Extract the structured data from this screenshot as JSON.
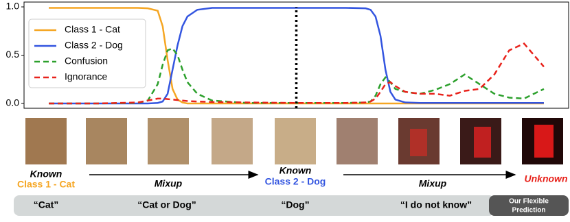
{
  "chart_data": {
    "type": "line",
    "x": [
      0,
      10,
      18,
      20,
      22,
      23,
      24,
      25,
      26,
      27,
      28,
      30,
      33,
      40,
      50,
      60,
      64,
      65,
      66,
      67,
      68,
      69,
      70,
      72,
      75,
      78,
      81,
      84,
      87,
      90,
      93,
      96,
      100
    ],
    "series": [
      {
        "name": "Class 1 - Cat",
        "color": "#f5a623",
        "dash": "solid",
        "values": [
          0.99,
          0.99,
          0.99,
          0.985,
          0.96,
          0.8,
          0.45,
          0.15,
          0.04,
          0.01,
          0,
          0,
          0,
          0,
          0,
          0,
          0,
          0,
          0,
          0,
          0,
          0,
          0,
          0,
          0,
          0,
          0,
          0,
          0,
          0,
          0,
          0,
          0
        ]
      },
      {
        "name": "Class 2 - Dog",
        "color": "#3355e0",
        "dash": "solid",
        "values": [
          0,
          0,
          0,
          0,
          0.005,
          0.02,
          0.1,
          0.35,
          0.6,
          0.8,
          0.9,
          0.97,
          0.99,
          0.99,
          0.99,
          0.99,
          0.985,
          0.97,
          0.9,
          0.7,
          0.35,
          0.12,
          0.04,
          0.01,
          0.005,
          0.005,
          0.005,
          0.005,
          0.005,
          0.005,
          0.005,
          0.005,
          0.005
        ]
      },
      {
        "name": "Confusion",
        "color": "#2ca02c",
        "dash": "dashed",
        "values": [
          0,
          0,
          0.005,
          0.03,
          0.2,
          0.4,
          0.55,
          0.57,
          0.5,
          0.35,
          0.22,
          0.1,
          0.03,
          0.005,
          0.005,
          0.005,
          0.01,
          0.02,
          0.08,
          0.2,
          0.27,
          0.22,
          0.15,
          0.12,
          0.1,
          0.14,
          0.2,
          0.3,
          0.2,
          0.1,
          0.06,
          0.05,
          0.15
        ]
      },
      {
        "name": "Ignorance",
        "color": "#e8221b",
        "dash": "dashed",
        "values": [
          0,
          0,
          0.01,
          0.03,
          0.05,
          0.05,
          0.045,
          0.04,
          0.035,
          0.03,
          0.025,
          0.02,
          0.015,
          0.01,
          0.005,
          0.005,
          0.01,
          0.02,
          0.05,
          0.12,
          0.2,
          0.22,
          0.18,
          0.12,
          0.1,
          0.1,
          0.08,
          0.13,
          0.15,
          0.3,
          0.55,
          0.62,
          0.38
        ]
      }
    ],
    "xlim": [
      -5,
      105
    ],
    "ylim": [
      -0.05,
      1.05
    ],
    "yticks": [
      {
        "value": 0,
        "label": "0.0"
      },
      {
        "value": 0.5,
        "label": "0.5"
      },
      {
        "value": 1,
        "label": "1.0"
      }
    ],
    "vline_x": 50,
    "legend": "upper left"
  },
  "figure": {
    "known_1": "Known",
    "class_1": "Class 1 - Cat",
    "mixup_1": "Mixup",
    "known_2": "Known",
    "class_2": "Class 2 - Dog",
    "mixup_2": "Mixup",
    "unknown": "Unknown",
    "predictions": [
      "“Cat”",
      "“Cat or Dog”",
      "“Dog”",
      "“I do not know”"
    ],
    "flexible": [
      "Our Flexible",
      "Prediction"
    ]
  }
}
